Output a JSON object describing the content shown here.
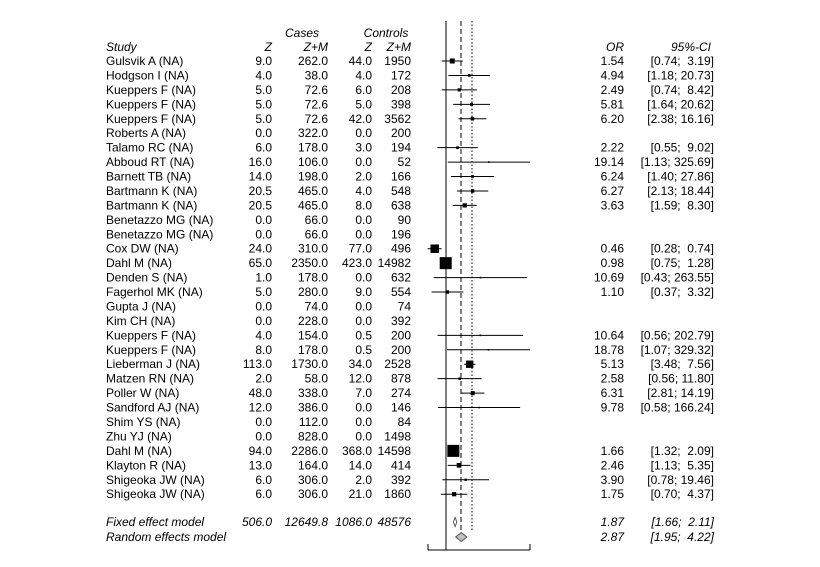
{
  "chart_data": {
    "type": "forest",
    "headers": {
      "cases": "Cases",
      "controls": "Controls",
      "study": "Study",
      "z_cases": "Z",
      "zm_cases": "Z+M",
      "z_controls": "Z",
      "zm_controls": "Z+M",
      "or": "OR",
      "ci": "95%-CI"
    },
    "studies": [
      {
        "study": "Gulsvik A (NA)",
        "z_cases": "9.0",
        "zm_cases": "262.0",
        "z_controls": "44.0",
        "zm_controls": "1950",
        "or_text": "1.54",
        "ci_text": "[0.74;  3.19]",
        "or": 1.54,
        "lo": 0.74,
        "hi": 3.19,
        "weight": 2.8
      },
      {
        "study": "Hodgson I (NA)",
        "z_cases": "4.0",
        "zm_cases": "38.0",
        "z_controls": "4.0",
        "zm_controls": "172",
        "or_text": "4.94",
        "ci_text": "[1.18; 20.73]",
        "or": 4.94,
        "lo": 1.18,
        "hi": 20.73,
        "weight": 0.8
      },
      {
        "study": "Kueppers F (NA)",
        "z_cases": "5.0",
        "zm_cases": "72.6",
        "z_controls": "6.0",
        "zm_controls": "208",
        "or_text": "2.49",
        "ci_text": "[0.74;  8.42]",
        "or": 2.49,
        "lo": 0.74,
        "hi": 8.42,
        "weight": 1.1
      },
      {
        "study": "Kueppers F (NA)",
        "z_cases": "5.0",
        "zm_cases": "72.6",
        "z_controls": "5.0",
        "zm_controls": "398",
        "or_text": "5.81",
        "ci_text": "[1.64; 20.62]",
        "or": 5.81,
        "lo": 1.64,
        "hi": 20.62,
        "weight": 1.0
      },
      {
        "study": "Kueppers F (NA)",
        "z_cases": "5.0",
        "zm_cases": "72.6",
        "z_controls": "42.0",
        "zm_controls": "3562",
        "or_text": "6.20",
        "ci_text": "[2.38; 16.16]",
        "or": 6.2,
        "lo": 2.38,
        "hi": 16.16,
        "weight": 1.4
      },
      {
        "study": "Roberts A (NA)",
        "z_cases": "0.0",
        "zm_cases": "322.0",
        "z_controls": "0.0",
        "zm_controls": "200",
        "or_text": "",
        "ci_text": "",
        "or": null,
        "lo": null,
        "hi": null,
        "weight": 0
      },
      {
        "study": "Talamo RC (NA)",
        "z_cases": "6.0",
        "zm_cases": "178.0",
        "z_controls": "3.0",
        "zm_controls": "194",
        "or_text": "2.22",
        "ci_text": "[0.55;  9.02]",
        "or": 2.22,
        "lo": 0.55,
        "hi": 9.02,
        "weight": 0.8
      },
      {
        "study": "Abboud RT (NA)",
        "z_cases": "16.0",
        "zm_cases": "106.0",
        "z_controls": "0.0",
        "zm_controls": "52",
        "or_text": "19.14",
        "ci_text": "[1.13; 325.69]",
        "or": 19.14,
        "lo": 1.13,
        "hi": 325.69,
        "weight": 0.3
      },
      {
        "study": "Barnett TB (NA)",
        "z_cases": "14.0",
        "zm_cases": "198.0",
        "z_controls": "2.0",
        "zm_controls": "166",
        "or_text": "6.24",
        "ci_text": "[1.40; 27.86]",
        "or": 6.24,
        "lo": 1.4,
        "hi": 27.86,
        "weight": 0.8
      },
      {
        "study": "Bartmann K (NA)",
        "z_cases": "20.5",
        "zm_cases": "465.0",
        "z_controls": "4.0",
        "zm_controls": "548",
        "or_text": "6.27",
        "ci_text": "[2.13; 18.44]",
        "or": 6.27,
        "lo": 2.13,
        "hi": 18.44,
        "weight": 1.3
      },
      {
        "study": "Bartmann K (NA)",
        "z_cases": "20.5",
        "zm_cases": "465.0",
        "z_controls": "8.0",
        "zm_controls": "638",
        "or_text": "3.63",
        "ci_text": "[1.59;  8.30]",
        "or": 3.63,
        "lo": 1.59,
        "hi": 8.3,
        "weight": 2.0
      },
      {
        "study": "Benetazzo MG (NA)",
        "z_cases": "0.0",
        "zm_cases": "66.0",
        "z_controls": "0.0",
        "zm_controls": "90",
        "or_text": "",
        "ci_text": "",
        "or": null,
        "lo": null,
        "hi": null,
        "weight": 0
      },
      {
        "study": "Benetazzo MG (NA)",
        "z_cases": "0.0",
        "zm_cases": "66.0",
        "z_controls": "0.0",
        "zm_controls": "196",
        "or_text": "",
        "ci_text": "",
        "or": null,
        "lo": null,
        "hi": null,
        "weight": 0
      },
      {
        "study": "Cox DW (NA)",
        "z_cases": "24.0",
        "zm_cases": "310.0",
        "z_controls": "77.0",
        "zm_controls": "496",
        "or_text": "0.46",
        "ci_text": "[0.28;  0.74]",
        "or": 0.46,
        "lo": 0.28,
        "hi": 0.74,
        "weight": 8.0
      },
      {
        "study": "Dahl M (NA)",
        "z_cases": "65.0",
        "zm_cases": "2350.0",
        "z_controls": "423.0",
        "zm_controls": "14982",
        "or_text": "0.98",
        "ci_text": "[0.75;  1.28]",
        "or": 0.98,
        "lo": 0.75,
        "hi": 1.28,
        "weight": 16.0
      },
      {
        "study": "Denden S (NA)",
        "z_cases": "1.0",
        "zm_cases": "178.0",
        "z_controls": "0.0",
        "zm_controls": "632",
        "or_text": "10.69",
        "ci_text": "[0.43; 263.55]",
        "or": 10.69,
        "lo": 0.43,
        "hi": 263.55,
        "weight": 0.2
      },
      {
        "study": "Fagerhol MK (NA)",
        "z_cases": "5.0",
        "zm_cases": "280.0",
        "z_controls": "9.0",
        "zm_controls": "554",
        "or_text": "1.10",
        "ci_text": "[0.37;  3.32]",
        "or": 1.1,
        "lo": 0.37,
        "hi": 3.32,
        "weight": 1.3
      },
      {
        "study": "Gupta J (NA)",
        "z_cases": "0.0",
        "zm_cases": "74.0",
        "z_controls": "0.0",
        "zm_controls": "74",
        "or_text": "",
        "ci_text": "",
        "or": null,
        "lo": null,
        "hi": null,
        "weight": 0
      },
      {
        "study": "Kim CH (NA)",
        "z_cases": "0.0",
        "zm_cases": "228.0",
        "z_controls": "0.0",
        "zm_controls": "392",
        "or_text": "",
        "ci_text": "",
        "or": null,
        "lo": null,
        "hi": null,
        "weight": 0
      },
      {
        "study": "Kueppers F (NA)",
        "z_cases": "4.0",
        "zm_cases": "154.0",
        "z_controls": "0.5",
        "zm_controls": "200",
        "or_text": "10.64",
        "ci_text": "[0.56; 202.79]",
        "or": 10.64,
        "lo": 0.56,
        "hi": 202.79,
        "weight": 0.2
      },
      {
        "study": "Kueppers F (NA)",
        "z_cases": "8.0",
        "zm_cases": "178.0",
        "z_controls": "0.5",
        "zm_controls": "200",
        "or_text": "18.78",
        "ci_text": "[1.07; 329.32]",
        "or": 18.78,
        "lo": 1.07,
        "hi": 329.32,
        "weight": 0.2
      },
      {
        "study": "Lieberman J (NA)",
        "z_cases": "113.0",
        "zm_cases": "1730.0",
        "z_controls": "34.0",
        "zm_controls": "2528",
        "or_text": "5.13",
        "ci_text": "[3.48;  7.56]",
        "or": 5.13,
        "lo": 3.48,
        "hi": 7.56,
        "weight": 6.0
      },
      {
        "study": "Matzen RN (NA)",
        "z_cases": "2.0",
        "zm_cases": "58.0",
        "z_controls": "12.0",
        "zm_controls": "878",
        "or_text": "2.58",
        "ci_text": "[0.56; 11.80]",
        "or": 2.58,
        "lo": 0.56,
        "hi": 11.8,
        "weight": 0.7
      },
      {
        "study": "Poller W (NA)",
        "z_cases": "48.0",
        "zm_cases": "338.0",
        "z_controls": "7.0",
        "zm_controls": "274",
        "or_text": "6.31",
        "ci_text": "[2.81; 14.19]",
        "or": 6.31,
        "lo": 2.81,
        "hi": 14.19,
        "weight": 1.8
      },
      {
        "study": "Sandford AJ (NA)",
        "z_cases": "12.0",
        "zm_cases": "386.0",
        "z_controls": "0.0",
        "zm_controls": "146",
        "or_text": "9.78",
        "ci_text": "[0.58; 166.24]",
        "or": 9.78,
        "lo": 0.58,
        "hi": 166.24,
        "weight": 0.2
      },
      {
        "study": "Shim YS (NA)",
        "z_cases": "0.0",
        "zm_cases": "112.0",
        "z_controls": "0.0",
        "zm_controls": "84",
        "or_text": "",
        "ci_text": "",
        "or": null,
        "lo": null,
        "hi": null,
        "weight": 0
      },
      {
        "study": "Zhu YJ (NA)",
        "z_cases": "0.0",
        "zm_cases": "828.0",
        "z_controls": "0.0",
        "zm_controls": "1498",
        "or_text": "",
        "ci_text": "",
        "or": null,
        "lo": null,
        "hi": null,
        "weight": 0
      },
      {
        "study": "Dahl M (NA)",
        "z_cases": "94.0",
        "zm_cases": "2286.0",
        "z_controls": "368.0",
        "zm_controls": "14598",
        "or_text": "1.66",
        "ci_text": "[1.32;  2.09]",
        "or": 1.66,
        "lo": 1.32,
        "hi": 2.09,
        "weight": 16.0
      },
      {
        "study": "Klayton R (NA)",
        "z_cases": "13.0",
        "zm_cases": "164.0",
        "z_controls": "14.0",
        "zm_controls": "414",
        "or_text": "2.46",
        "ci_text": "[1.13;  5.35]",
        "or": 2.46,
        "lo": 1.13,
        "hi": 5.35,
        "weight": 2.4
      },
      {
        "study": "Shigeoka JW (NA)",
        "z_cases": "6.0",
        "zm_cases": "306.0",
        "z_controls": "2.0",
        "zm_controls": "392",
        "or_text": "3.90",
        "ci_text": "[0.78; 19.46]",
        "or": 3.9,
        "lo": 0.78,
        "hi": 19.46,
        "weight": 0.6
      },
      {
        "study": "Shigeoka JW (NA)",
        "z_cases": "6.0",
        "zm_cases": "306.0",
        "z_controls": "21.0",
        "zm_controls": "1860",
        "or_text": "1.75",
        "ci_text": "[0.70;  4.37]",
        "or": 1.75,
        "lo": 0.7,
        "hi": 4.37,
        "weight": 2.0
      }
    ],
    "summary": [
      {
        "label": "Fixed effect model",
        "z_cases": "506.0",
        "zm_cases": "12649.8",
        "z_controls": "1086.0",
        "zm_controls": "48576",
        "or_text": "1.87",
        "ci_text": "[1.66;  2.11]",
        "or": 1.87,
        "lo": 1.66,
        "hi": 2.11,
        "fill": "#ffffff"
      },
      {
        "label": "Random effects model",
        "z_cases": "",
        "zm_cases": "",
        "z_controls": "",
        "zm_controls": "",
        "or_text": "2.87",
        "ci_text": "[1.95;  4.22]",
        "or": 2.87,
        "lo": 1.95,
        "hi": 4.22,
        "fill": "#bfbfbf"
      }
    ],
    "x_scale": "log",
    "reference_line": 1,
    "colors": {
      "marker": "#000000",
      "random_diamond": "#bfbfbf",
      "fixed_diamond": "#ffffff"
    }
  }
}
